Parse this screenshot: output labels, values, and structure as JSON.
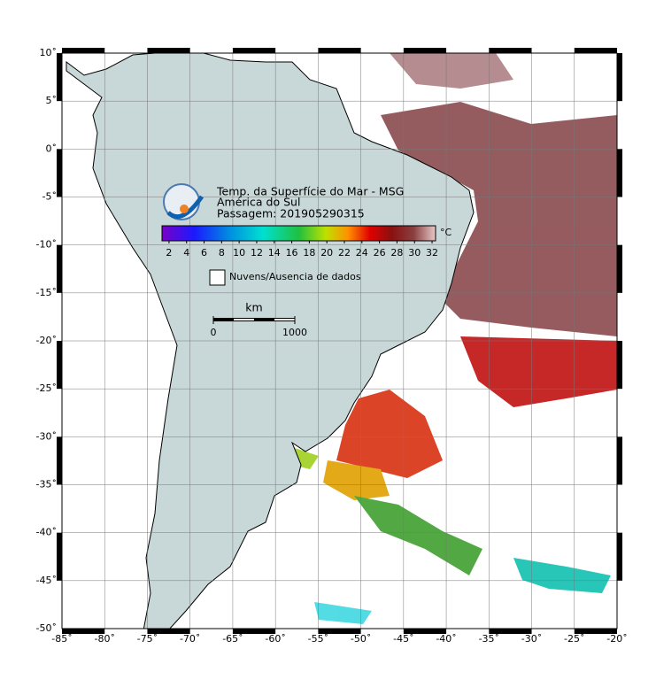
{
  "map": {
    "title_lines": [
      "Temp. da Superfície do Mar - MSG",
      "América do Sul",
      "Passagem: 201905290315"
    ],
    "colorbar": {
      "unit": "°C",
      "lim": [
        1.2,
        32.4
      ],
      "ticks": [
        2,
        4,
        6,
        8,
        10,
        12,
        14,
        16,
        18,
        20,
        22,
        24,
        26,
        28,
        30,
        32
      ]
    },
    "legend": "Nuvens/Ausencia de dados",
    "scale_bar": {
      "unit": "km",
      "ticks": [
        0,
        1000
      ]
    },
    "xlim": [
      -85,
      -20
    ],
    "ylim": [
      -50,
      10
    ],
    "xticks": [
      {
        "value": -85,
        "label": "-85˚"
      },
      {
        "value": -80,
        "label": "-80˚"
      },
      {
        "value": -75,
        "label": "-75˚"
      },
      {
        "value": -70,
        "label": "-70˚"
      },
      {
        "value": -65,
        "label": "-65˚"
      },
      {
        "value": -60,
        "label": "-60˚"
      },
      {
        "value": -55,
        "label": "-55˚"
      },
      {
        "value": -50,
        "label": "-50˚"
      },
      {
        "value": -45,
        "label": "-45˚"
      },
      {
        "value": -40,
        "label": "-40˚"
      },
      {
        "value": -35,
        "label": "-35˚"
      },
      {
        "value": -30,
        "label": "-30˚"
      },
      {
        "value": -25,
        "label": "-25˚"
      },
      {
        "value": -20,
        "label": "-20˚"
      }
    ],
    "yticks": [
      {
        "value": 10,
        "label": "10˚"
      },
      {
        "value": 5,
        "label": "5˚"
      },
      {
        "value": 0,
        "label": "0˚"
      },
      {
        "value": -5,
        "label": "-5˚"
      },
      {
        "value": -10,
        "label": "-10˚"
      },
      {
        "value": -15,
        "label": "-15˚"
      },
      {
        "value": -20,
        "label": "-20˚"
      },
      {
        "value": -25,
        "label": "-25˚"
      },
      {
        "value": -30,
        "label": "-30˚"
      },
      {
        "value": -35,
        "label": "-35˚"
      },
      {
        "value": -40,
        "label": "-40˚"
      },
      {
        "value": -45,
        "label": "-45˚"
      },
      {
        "value": -50,
        "label": "-50˚"
      }
    ]
  }
}
